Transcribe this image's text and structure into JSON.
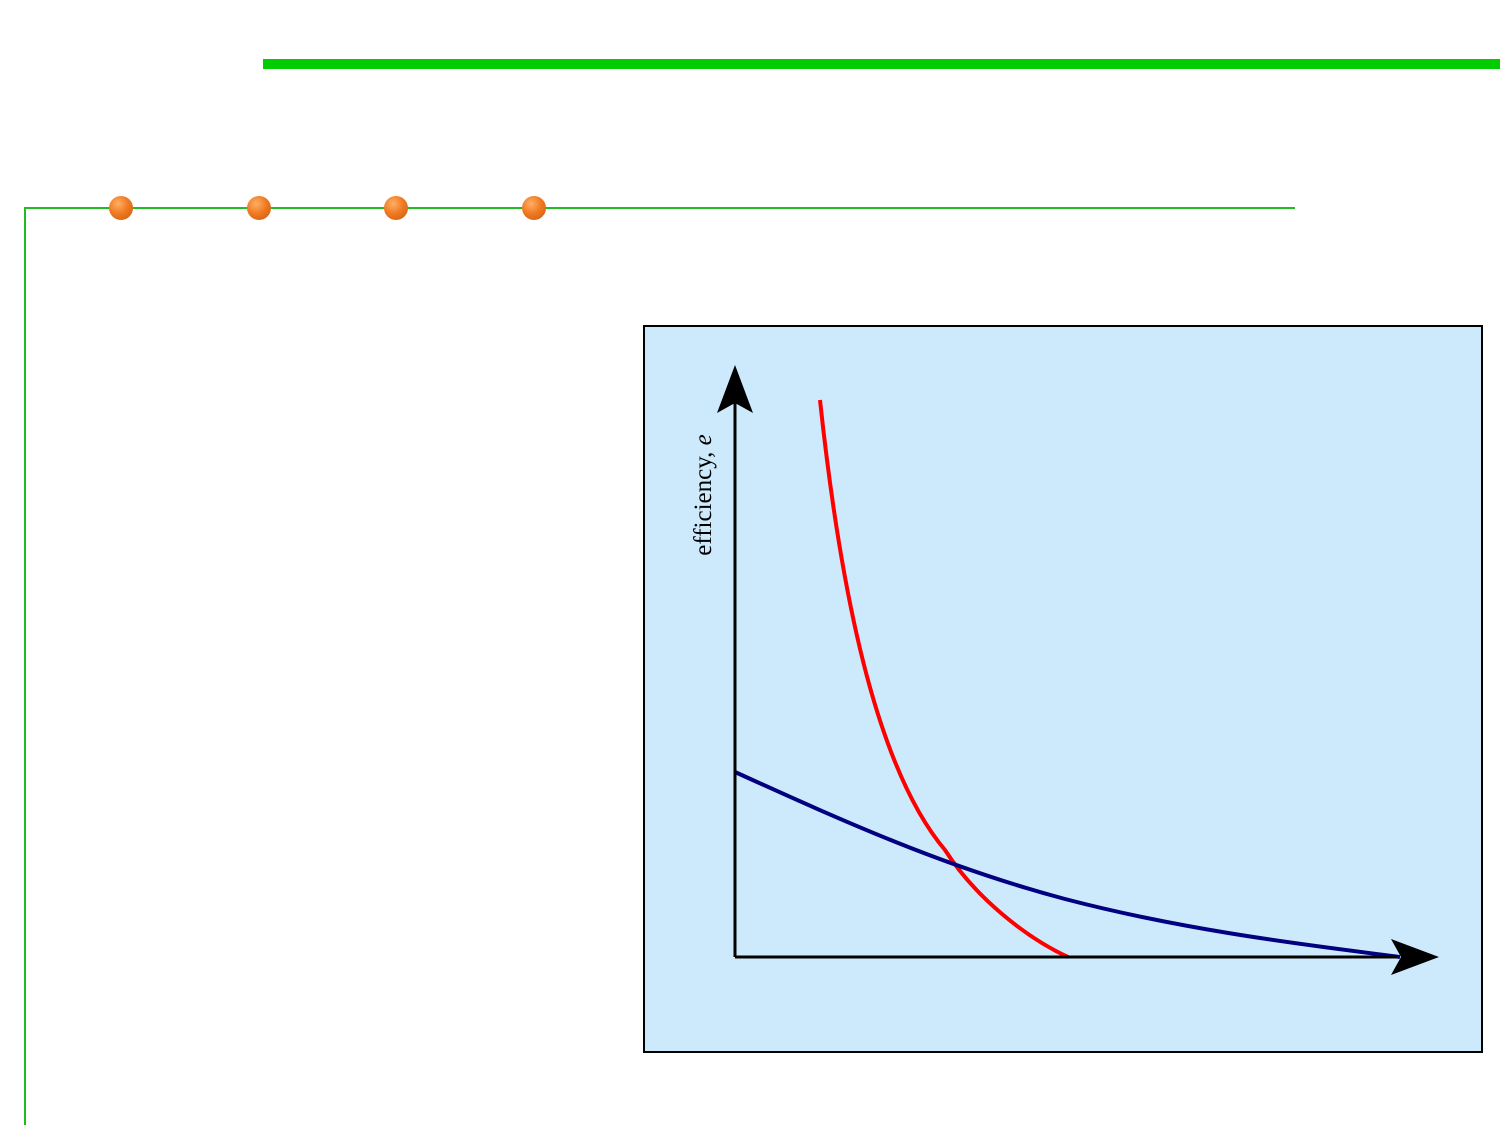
{
  "decor": {
    "accent_green": "#00cc00",
    "line_green": "#22bb22",
    "dot_color": "#f07a22"
  },
  "diagram": {
    "background": "#cdeafc",
    "y_axis_label": "efficiency, ",
    "y_axis_label_var": "e",
    "curves": [
      {
        "color": "#ff0000"
      },
      {
        "color": "#000080"
      }
    ]
  }
}
